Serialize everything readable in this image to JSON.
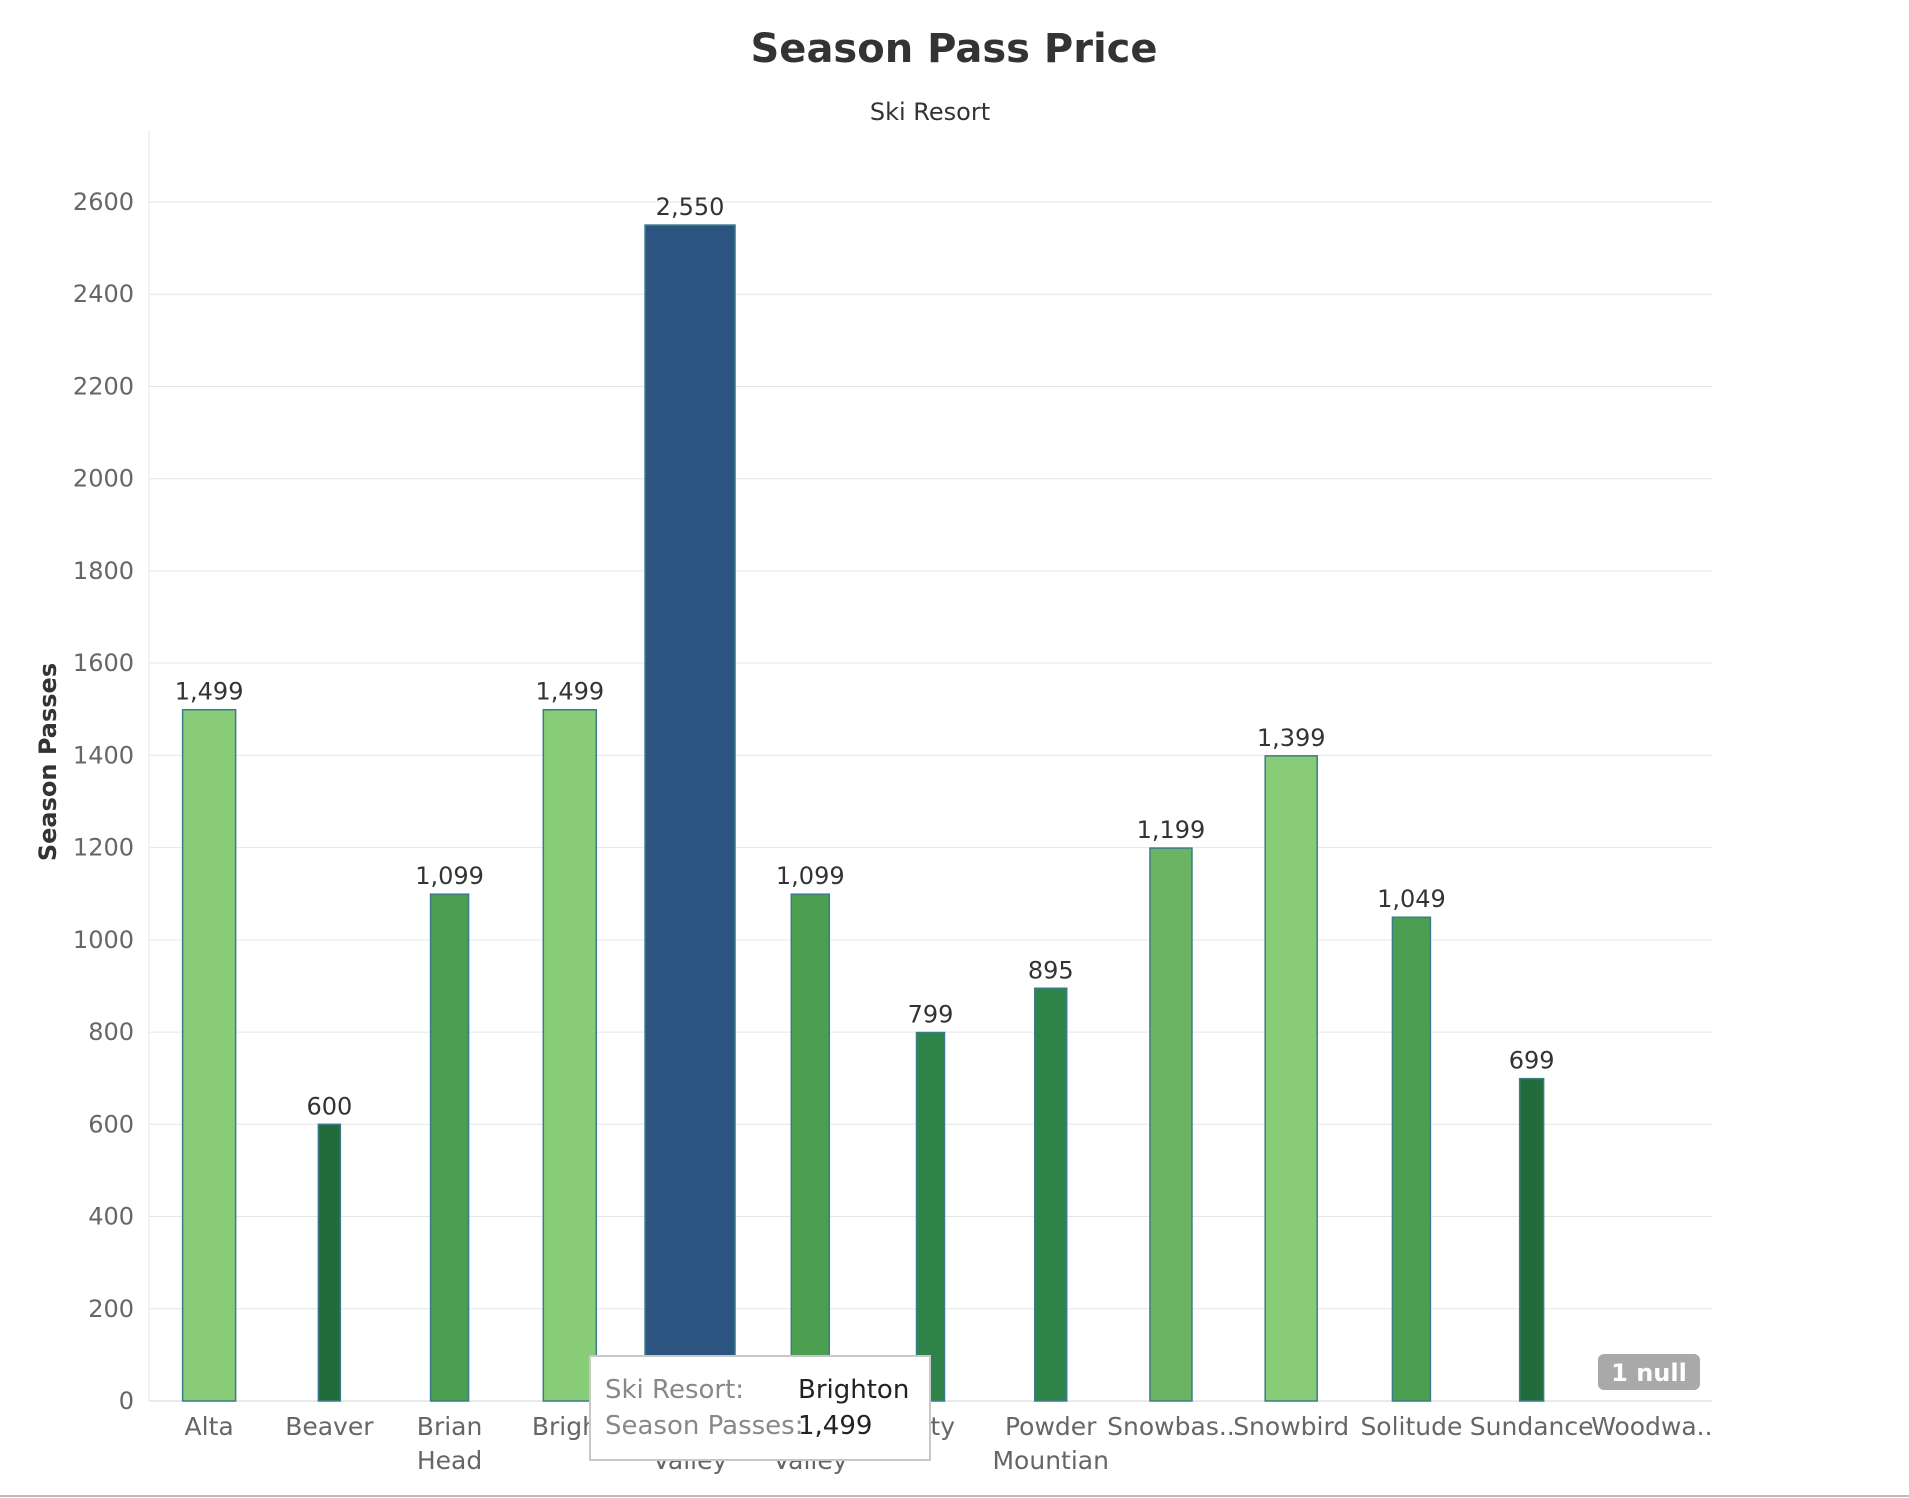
{
  "chart_data": {
    "type": "bar",
    "title": "Season Pass Price",
    "subtitle": "Ski Resort",
    "ylabel": "Season Passes",
    "xlabel": "",
    "ylim": [
      0,
      2700
    ],
    "yticks": [
      0,
      200,
      400,
      600,
      800,
      1000,
      1200,
      1400,
      1600,
      1800,
      2000,
      2200,
      2400,
      2600
    ],
    "grid": true,
    "categories": [
      {
        "lines": [
          "Alta"
        ],
        "value": 1499,
        "label": "1,499",
        "color": "#88cc77"
      },
      {
        "lines": [
          "Beaver"
        ],
        "value": 600,
        "label": "600",
        "color": "#226b3a"
      },
      {
        "lines": [
          "Brian",
          "Head"
        ],
        "value": 1099,
        "label": "1,099",
        "color": "#4c9e50"
      },
      {
        "lines": [
          "Bright"
        ],
        "value": 1499,
        "label": "1,499",
        "color": "#88cc77"
      },
      {
        "lines": [
          "",
          "Valley"
        ],
        "value": 2550,
        "label": "2,550",
        "color": "#2b5580"
      },
      {
        "lines": [
          "",
          "Valley"
        ],
        "value": 1099,
        "label": "1,099",
        "color": "#4c9e50"
      },
      {
        "lines": [
          "City"
        ],
        "value": 799,
        "label": "799",
        "color": "#2e8448"
      },
      {
        "lines": [
          "Powder",
          "Mountian"
        ],
        "value": 895,
        "label": "895",
        "color": "#2e8448"
      },
      {
        "lines": [
          "Snowbas.."
        ],
        "value": 1199,
        "label": "1,199",
        "color": "#6ab463"
      },
      {
        "lines": [
          "Snowbird"
        ],
        "value": 1399,
        "label": "1,399",
        "color": "#88cc77"
      },
      {
        "lines": [
          "Solitude"
        ],
        "value": 1049,
        "label": "1,049",
        "color": "#4c9e50"
      },
      {
        "lines": [
          "Sundance"
        ],
        "value": 699,
        "label": "699",
        "color": "#226b3a"
      },
      {
        "lines": [
          "Woodwa.."
        ],
        "value": null,
        "label": "",
        "color": "#88cc77"
      }
    ],
    "null_indicator": "1 null",
    "tooltip": {
      "rows": [
        {
          "key": "Ski Resort:",
          "value": "Brighton"
        },
        {
          "key": "Season Passes:",
          "value": "1,499"
        }
      ]
    }
  }
}
